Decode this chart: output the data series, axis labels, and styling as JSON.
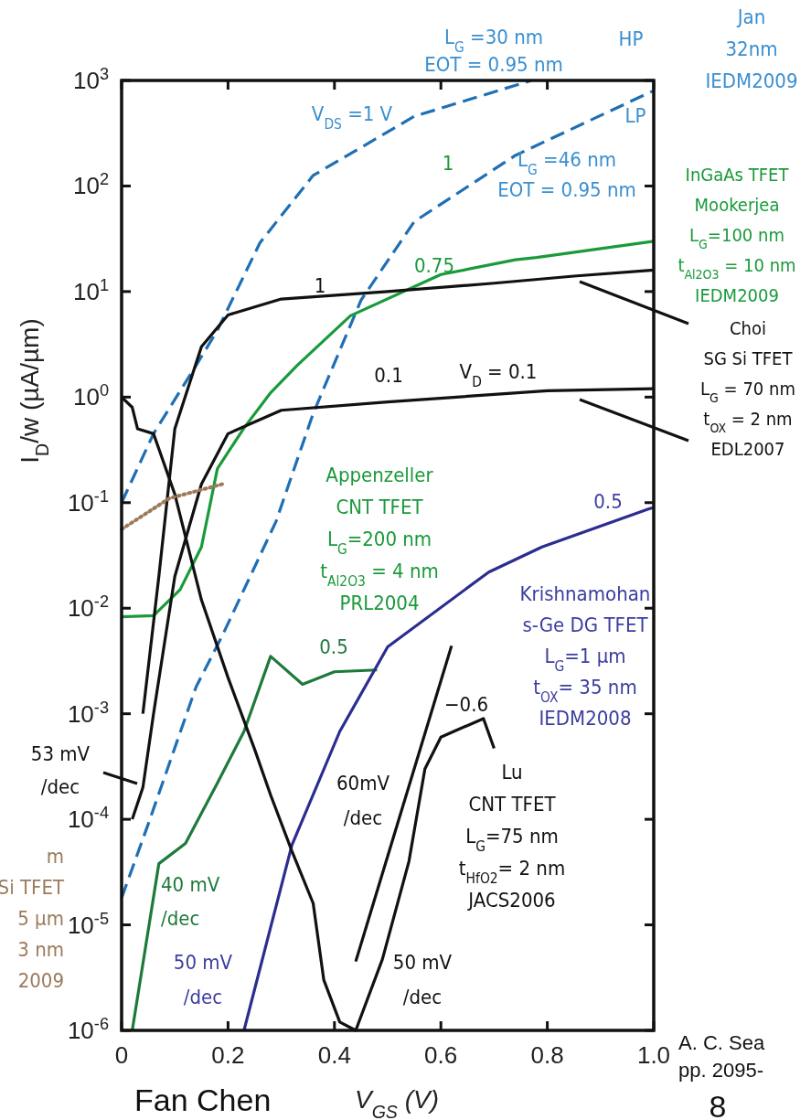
{
  "chart_data": {
    "type": "line",
    "xlabel": "V$_{GS}$ (V)",
    "ylabel": "I$_{D}$/w (µA/µm)",
    "log": "y",
    "xlim": [
      0,
      1
    ],
    "ylim": [
      1e-06,
      1000
    ],
    "xticks": [
      0,
      0.2,
      0.4,
      0.6,
      0.8,
      {
        "value": 1,
        "label": "1.0"
      }
    ],
    "yticks": [
      {
        "value": 1e-06,
        "label": "10$^{-6}$"
      },
      {
        "value": 1e-05,
        "label": "10$^{-5}$"
      },
      {
        "value": 0.0001,
        "label": "10$^{-4}$"
      },
      {
        "value": 0.001,
        "label": "10$^{-3}$"
      },
      {
        "value": 0.01,
        "label": "10$^{-2}$"
      },
      {
        "value": 0.1,
        "label": "10$^{-1}$"
      },
      {
        "value": 1,
        "label": "10$^{0}$"
      },
      {
        "value": 10,
        "label": "10$^{1}$"
      },
      {
        "value": 100,
        "label": "10$^{2}$"
      },
      {
        "value": 1000,
        "label": "10$^{3}$"
      }
    ],
    "grid": false,
    "marker": "none",
    "series": [
      {
        "color": "#1f6fb5",
        "line_style": "dashed",
        "x": [
          0,
          0.06,
          0.14,
          0.18,
          0.26,
          0.36,
          0.55,
          0.77
        ],
        "values": [
          0.1,
          0.45,
          2,
          4.3,
          29,
          126,
          457,
          1000
        ]
      },
      {
        "color": "#1f6fb5",
        "line_style": "dashed",
        "x": [
          0,
          0.05,
          0.14,
          0.19,
          0.29,
          0.36,
          0.45,
          0.55,
          0.74,
          0.99,
          1
        ],
        "values": [
          1.8e-05,
          9e-05,
          0.0018,
          0.0056,
          0.066,
          0.7,
          8.3,
          46,
          195,
          760,
          800
        ]
      },
      {
        "color": "#1a9a3a",
        "line_style": "solid",
        "x": [
          0,
          0.06,
          0.11,
          0.15,
          0.18,
          0.23,
          0.28,
          0.33,
          0.43,
          0.6,
          0.74,
          0.78,
          1
        ],
        "values": [
          0.0083,
          0.0085,
          0.015,
          0.038,
          0.21,
          0.51,
          1.1,
          2,
          5.9,
          14.5,
          20,
          21,
          30
        ]
      },
      {
        "color": "#111111",
        "line_style": "solid",
        "x": [
          0.04,
          0.07,
          0.1,
          0.15,
          0.2,
          0.3,
          0.5,
          0.7,
          0.85,
          1
        ],
        "values": [
          0.001,
          0.02,
          0.5,
          3,
          6,
          8.5,
          10,
          12,
          14,
          16
        ]
      },
      {
        "color": "#111111",
        "line_style": "solid",
        "x": [
          0.02,
          0.04,
          0.06,
          0.1,
          0.15,
          0.2,
          0.3,
          0.5,
          0.8,
          1
        ],
        "values": [
          0.0001,
          0.0002,
          0.001,
          0.02,
          0.15,
          0.45,
          0.75,
          0.9,
          1.15,
          1.2
        ]
      },
      {
        "color": "#1e7a3a",
        "line_style": "solid",
        "x": [
          0.02,
          0.07,
          0.12,
          0.18,
          0.23,
          0.28,
          0.34,
          0.4,
          0.48
        ],
        "values": [
          1e-06,
          3.8e-05,
          5.9e-05,
          0.00022,
          0.00068,
          0.0035,
          0.0019,
          0.0025,
          0.0026
        ]
      },
      {
        "color": "#2b2d8f",
        "line_style": "solid",
        "x": [
          0.23,
          0.32,
          0.41,
          0.5,
          0.69,
          0.79,
          0.99,
          1
        ],
        "values": [
          1e-06,
          5.7e-05,
          0.00068,
          0.0043,
          0.022,
          0.038,
          0.087,
          0.09
        ]
      },
      {
        "color": "#111111",
        "line_style": "solid",
        "x": [
          0,
          0.02,
          0.03,
          0.06,
          0.1,
          0.15,
          0.2,
          0.25,
          0.28,
          0.32,
          0.36,
          0.38,
          0.41,
          0.44,
          0.49,
          0.54,
          0.57,
          0.6,
          0.63,
          0.68,
          0.7
        ],
        "values": [
          1,
          0.8,
          0.5,
          0.45,
          0.12,
          0.012,
          0.0022,
          0.00046,
          0.00017,
          5e-05,
          1.6e-05,
          3e-06,
          1.2e-06,
          1e-06,
          4.7e-06,
          4e-05,
          0.0003,
          0.0006,
          0.0007,
          0.0009,
          0.00047
        ]
      },
      {
        "color": "#111111",
        "line_style": "solid",
        "x": [
          0.44,
          0.62
        ],
        "values": [
          4.5e-06,
          0.0044
        ]
      },
      {
        "color": "#9c7a5a",
        "line_style": "dotted",
        "x": [
          0,
          0.09,
          0.19
        ],
        "values": [
          0.056,
          0.11,
          0.15
        ]
      }
    ],
    "annotations": [
      "L$_{G}$ =30 nm\nEOT = 0.95 nm",
      "HP",
      "Jan\n32nm\nIEDM2009",
      "V$_{DS}$ =1 V",
      "LP",
      "1",
      "L$_{G}$ =46 nm\nEOT = 0.95 nm",
      "InGaAs TFET\nMookerjea\nL$_{G}$=100 nm\nt$_{Al2O3}$ = 10 nm\nIEDM2009",
      "0.75",
      "1",
      "Choi\nSG Si TFET\nL$_{G}$ = 70 nm\nt$_{OX}$ = 2 nm\nEDL2007",
      "0.1",
      "V$_{D}$ = 0.1",
      "Appenzeller\nCNT TFET\nL$_{G}$=200 nm\nt$_{Al2O3}$ = 4 nm\nPRL2004",
      "0.5",
      "Krishnamohan\ns-Ge DG TFET\nL$_{G}$=1 µm\nt$_{OX}$= 35 nm\nIEDM2008",
      "0.5",
      "−0.6",
      "Lu\nCNT TFET\nL$_{G}$=75 nm\nt$_{HfO2}$= 2 nm\nJACS2006",
      "53 mV\n/dec",
      "60mV\n/dec",
      "40 mV\n/dec",
      "50 mV\n/dec",
      "50 mV\n/dec",
      "m\nSi TFET\n5 µm\n3 nm\n2009",
      "A. C. Sea\npp. 2095-",
      "Fan Chen",
      "8"
    ]
  }
}
